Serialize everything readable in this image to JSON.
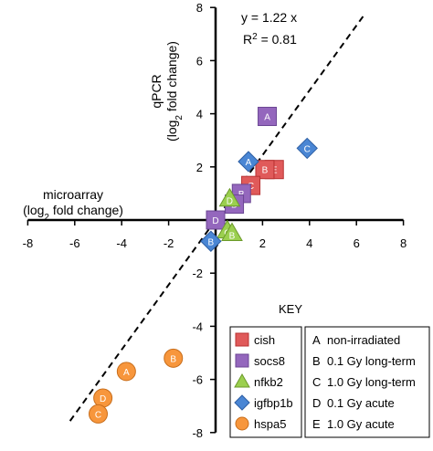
{
  "chart_data": {
    "type": "scatter",
    "xlim": [
      -8,
      8
    ],
    "ylim": [
      -8,
      8
    ],
    "x_ticks": [
      -8,
      -6,
      -4,
      -2,
      0,
      2,
      4,
      6,
      8
    ],
    "y_ticks": [
      -8,
      -6,
      -4,
      -2,
      2,
      4,
      6,
      8
    ],
    "xlabel_line1": "microarray",
    "xlabel_line2": "(log",
    "xlabel_sub": "2",
    "xlabel_line2_end": " fold change)",
    "ylabel_line1": "qPCR",
    "ylabel_line2": "(log",
    "ylabel_sub": "2",
    "ylabel_line2_end": " fold change)",
    "equation": "y = 1.22 x",
    "r2_label": "R",
    "r2_sup": "2",
    "r2_value": " = 0.81",
    "trendline_slope": 1.22,
    "key_title": "KEY",
    "series": [
      {
        "name": "cish",
        "marker": "square",
        "color": "#e05a5a",
        "stroke": "#b83232",
        "points": [
          {
            "x": 2.5,
            "y": 1.9,
            "label": "E"
          },
          {
            "x": 2.1,
            "y": 1.9,
            "label": "B"
          },
          {
            "x": 1.5,
            "y": 1.3,
            "label": "C"
          }
        ]
      },
      {
        "name": "socs8",
        "marker": "square",
        "color": "#9467bd",
        "stroke": "#6b4694",
        "points": [
          {
            "x": 2.2,
            "y": 3.9,
            "label": "A"
          },
          {
            "x": 1.1,
            "y": 1.0,
            "label": "B"
          },
          {
            "x": 0.8,
            "y": 0.6,
            "label": "D"
          },
          {
            "x": 0.0,
            "y": 0.0,
            "label": "D"
          }
        ]
      },
      {
        "name": "nfkb2",
        "marker": "triangle",
        "color": "#9bcf4f",
        "stroke": "#6b9a2a",
        "points": [
          {
            "x": 0.6,
            "y": 0.8,
            "label": "D"
          },
          {
            "x": 0.5,
            "y": -0.4,
            "label": "C"
          },
          {
            "x": 0.7,
            "y": -0.5,
            "label": "B"
          }
        ]
      },
      {
        "name": "igfbp1b",
        "marker": "diamond",
        "color": "#4a86d4",
        "stroke": "#2d5ea3",
        "points": [
          {
            "x": 3.9,
            "y": 2.7,
            "label": "C"
          },
          {
            "x": 1.4,
            "y": 2.2,
            "label": "A"
          },
          {
            "x": -0.2,
            "y": -0.8,
            "label": "B"
          }
        ]
      },
      {
        "name": "hspa5",
        "marker": "circle",
        "color": "#f7963c",
        "stroke": "#c86e1c",
        "points": [
          {
            "x": -1.8,
            "y": -5.2,
            "label": "B"
          },
          {
            "x": -3.8,
            "y": -5.7,
            "label": "A"
          },
          {
            "x": -4.8,
            "y": -6.7,
            "label": "D"
          },
          {
            "x": -5.0,
            "y": -7.3,
            "label": "C"
          }
        ]
      }
    ],
    "key_conditions": [
      {
        "letter": "A",
        "text": "non-irradiated"
      },
      {
        "letter": "B",
        "text": "0.1 Gy long-term"
      },
      {
        "letter": "C",
        "text": "1.0 Gy long-term"
      },
      {
        "letter": "D",
        "text": "0.1 Gy acute"
      },
      {
        "letter": "E",
        "text": "1.0 Gy acute"
      }
    ]
  }
}
